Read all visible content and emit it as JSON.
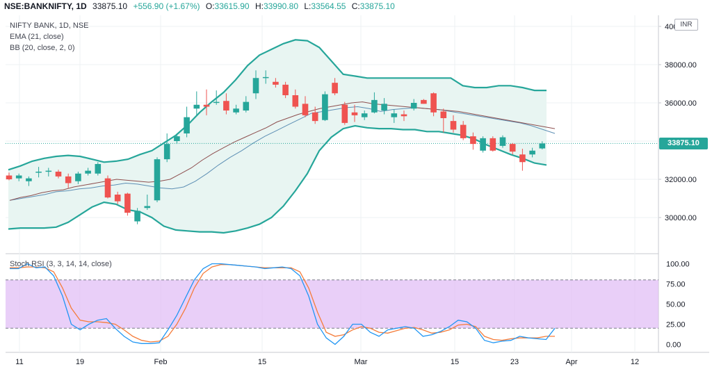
{
  "header": {
    "symbol": "NSE:BANKNIFTY, 1D",
    "last": "33875.10",
    "change": "+556.90 (+1.67%)",
    "open_lbl": "O:",
    "open": "33615.90",
    "high_lbl": "H:",
    "high": "33990.80",
    "low_lbl": "L:",
    "low": "33564.55",
    "close_lbl": "C:",
    "close": "33875.10"
  },
  "legend": {
    "title": "NIFTY BANK, 1D, NSE",
    "ema": "EMA (21, close)",
    "bb": "BB (20, close, 2, 0)",
    "stoch": "Stoch RSI (3, 3, 14, 14, close)"
  },
  "price_axis": {
    "ticks": [
      "40000.00",
      "38000.00",
      "36000.00",
      "34000.00",
      "32000.00",
      "30000.00"
    ],
    "tick_values": [
      40000,
      38000,
      36000,
      34000,
      32000,
      30000
    ],
    "currency_badge": "INR",
    "current_label": "33875.10",
    "current_value": 33875.1
  },
  "stoch_axis": {
    "ticks": [
      "100.00",
      "75.00",
      "50.00",
      "25.00",
      "0.00"
    ],
    "tick_values": [
      100,
      75,
      50,
      25,
      0
    ],
    "band": [
      20,
      80
    ]
  },
  "date_axis": {
    "labels": [
      "11",
      "19",
      "Feb",
      "15",
      "Mar",
      "15",
      "23",
      "Apr",
      "12"
    ]
  },
  "colors": {
    "up": "#26a69a",
    "down": "#ef5350",
    "bb_band": "#26a69a",
    "bb_fill": "#e8f5f2",
    "ema": "#8d4e4e",
    "bb_basis": "#5d8fb4",
    "stoch_k": "#2196f3",
    "stoch_d": "#f57c3a",
    "stoch_bg": "#e1bff5",
    "grid": "#eef0f3"
  },
  "chart_data": {
    "type": "candlestick",
    "title": "NIFTY BANK, 1D, NSE",
    "candles": [
      {
        "o": 32200,
        "h": 32350,
        "l": 31950,
        "c": 32000
      },
      {
        "o": 32050,
        "h": 32300,
        "l": 31900,
        "c": 32200
      },
      {
        "o": 31900,
        "h": 32150,
        "l": 31650,
        "c": 32050
      },
      {
        "o": 32350,
        "h": 32650,
        "l": 32100,
        "c": 32400
      },
      {
        "o": 32400,
        "h": 32600,
        "l": 32150,
        "c": 32450
      },
      {
        "o": 32400,
        "h": 32500,
        "l": 32050,
        "c": 32150
      },
      {
        "o": 32150,
        "h": 32300,
        "l": 31550,
        "c": 31800
      },
      {
        "o": 31900,
        "h": 32400,
        "l": 31750,
        "c": 32300
      },
      {
        "o": 32300,
        "h": 32600,
        "l": 32200,
        "c": 32450
      },
      {
        "o": 32300,
        "h": 32900,
        "l": 32200,
        "c": 32800
      },
      {
        "o": 32050,
        "h": 32200,
        "l": 31000,
        "c": 31050
      },
      {
        "o": 31200,
        "h": 31350,
        "l": 30700,
        "c": 30850
      },
      {
        "o": 31250,
        "h": 31300,
        "l": 30100,
        "c": 30250
      },
      {
        "o": 29800,
        "h": 30500,
        "l": 29650,
        "c": 30350
      },
      {
        "o": 30500,
        "h": 31200,
        "l": 30400,
        "c": 30600
      },
      {
        "o": 30900,
        "h": 33150,
        "l": 30800,
        "c": 33050
      },
      {
        "o": 33050,
        "h": 34400,
        "l": 32900,
        "c": 33850
      },
      {
        "o": 34000,
        "h": 34400,
        "l": 33850,
        "c": 34250
      },
      {
        "o": 34400,
        "h": 35800,
        "l": 34200,
        "c": 35250
      },
      {
        "o": 35700,
        "h": 36600,
        "l": 35300,
        "c": 35900
      },
      {
        "o": 35900,
        "h": 36700,
        "l": 35350,
        "c": 35800
      },
      {
        "o": 36050,
        "h": 36650,
        "l": 35900,
        "c": 36050
      },
      {
        "o": 36100,
        "h": 36500,
        "l": 35400,
        "c": 35600
      },
      {
        "o": 35500,
        "h": 35900,
        "l": 35400,
        "c": 35700
      },
      {
        "o": 35600,
        "h": 36350,
        "l": 35500,
        "c": 36050
      },
      {
        "o": 36500,
        "h": 37700,
        "l": 36200,
        "c": 37300
      },
      {
        "o": 37300,
        "h": 37700,
        "l": 37000,
        "c": 37350
      },
      {
        "o": 37100,
        "h": 37300,
        "l": 36800,
        "c": 36950
      },
      {
        "o": 36950,
        "h": 37100,
        "l": 36250,
        "c": 36400
      },
      {
        "o": 36400,
        "h": 36700,
        "l": 35700,
        "c": 35800
      },
      {
        "o": 35950,
        "h": 36350,
        "l": 35250,
        "c": 35350
      },
      {
        "o": 35500,
        "h": 35800,
        "l": 34900,
        "c": 35050
      },
      {
        "o": 35100,
        "h": 36600,
        "l": 35050,
        "c": 36450
      },
      {
        "o": 37050,
        "h": 37300,
        "l": 36400,
        "c": 36500
      },
      {
        "o": 35900,
        "h": 36050,
        "l": 34850,
        "c": 34950
      },
      {
        "o": 35500,
        "h": 35900,
        "l": 35000,
        "c": 35350
      },
      {
        "o": 35250,
        "h": 35600,
        "l": 35100,
        "c": 35450
      },
      {
        "o": 35500,
        "h": 36550,
        "l": 35450,
        "c": 36150
      },
      {
        "o": 35600,
        "h": 36250,
        "l": 35400,
        "c": 35950
      },
      {
        "o": 35250,
        "h": 35650,
        "l": 34950,
        "c": 35450
      },
      {
        "o": 35400,
        "h": 35600,
        "l": 35050,
        "c": 35300
      },
      {
        "o": 35700,
        "h": 36200,
        "l": 35600,
        "c": 36000
      },
      {
        "o": 36150,
        "h": 36200,
        "l": 35950,
        "c": 35950
      },
      {
        "o": 36500,
        "h": 36550,
        "l": 35300,
        "c": 35500
      },
      {
        "o": 35550,
        "h": 35700,
        "l": 34450,
        "c": 35200
      },
      {
        "o": 35050,
        "h": 35350,
        "l": 34450,
        "c": 34600
      },
      {
        "o": 34850,
        "h": 35050,
        "l": 34050,
        "c": 34150
      },
      {
        "o": 34250,
        "h": 34450,
        "l": 33550,
        "c": 33850
      },
      {
        "o": 33500,
        "h": 34250,
        "l": 33400,
        "c": 34150
      },
      {
        "o": 34150,
        "h": 34250,
        "l": 33450,
        "c": 33500
      },
      {
        "o": 33750,
        "h": 34300,
        "l": 33650,
        "c": 34200
      },
      {
        "o": 33850,
        "h": 33900,
        "l": 33300,
        "c": 33450
      },
      {
        "o": 33300,
        "h": 33600,
        "l": 32450,
        "c": 32900
      },
      {
        "o": 33300,
        "h": 33650,
        "l": 33150,
        "c": 33500
      },
      {
        "o": 33615.9,
        "h": 33990.8,
        "l": 33564.55,
        "c": 33875.1
      }
    ],
    "ema": [
      30900,
      31050,
      31150,
      31300,
      31400,
      31450,
      31600,
      31700,
      31800,
      31900,
      32000,
      31950,
      31900,
      31850,
      31900,
      32000,
      32300,
      32600,
      33000,
      33350,
      33650,
      33950,
      34200,
      34450,
      34700,
      35000,
      35200,
      35400,
      35550,
      35700,
      35800,
      35900,
      36000,
      36050,
      35950,
      35900,
      35850,
      35800,
      35750,
      35700,
      35650,
      35600,
      35550,
      35450,
      35350,
      35250,
      35150,
      35050,
      34950,
      34850,
      34750,
      34650
    ],
    "bb_basis": [
      30900,
      31000,
      31100,
      31200,
      31350,
      31400,
      31500,
      31550,
      31650,
      31700,
      31800,
      31750,
      31650,
      31550,
      31500,
      31600,
      31900,
      32300,
      32750,
      33150,
      33500,
      33900,
      34250,
      34550,
      34850,
      35150,
      35450,
      35550,
      35650,
      35750,
      35800,
      35700,
      35550,
      35650,
      35700,
      35750,
      35700,
      35650,
      35550,
      35450,
      35350,
      35250,
      35150,
      35050,
      34950,
      34800,
      34600,
      34400
    ],
    "bb_upper": [
      32500,
      32700,
      32950,
      33100,
      33200,
      33250,
      33200,
      33050,
      32900,
      32950,
      33050,
      33300,
      33500,
      33900,
      34300,
      34850,
      35500,
      36050,
      36550,
      37200,
      37950,
      38500,
      38800,
      39100,
      39300,
      39250,
      38900,
      38200,
      37500,
      37400,
      37300,
      37300,
      37300,
      37300,
      37300,
      37300,
      37300,
      37300,
      36900,
      36800,
      36800,
      36900,
      36900,
      36800,
      36650,
      36650
    ],
    "bb_lower": [
      29400,
      29450,
      29450,
      29450,
      29500,
      29750,
      30150,
      30550,
      30800,
      30700,
      30400,
      30300,
      30000,
      29550,
      29350,
      29300,
      29250,
      29250,
      29200,
      29300,
      29450,
      29650,
      30000,
      30600,
      31400,
      32300,
      33500,
      34200,
      34650,
      34800,
      34700,
      34650,
      34650,
      34600,
      34600,
      34500,
      34500,
      34400,
      34300,
      34100,
      33800,
      33550,
      33300,
      33100,
      32850,
      32750
    ],
    "stoch_k": [
      94,
      94,
      100,
      95,
      96,
      85,
      60,
      25,
      18,
      25,
      30,
      32,
      20,
      10,
      3,
      1,
      1,
      2,
      18,
      36,
      58,
      80,
      94,
      100,
      100,
      99,
      98,
      97,
      96,
      94,
      95,
      96,
      94,
      85,
      60,
      25,
      8,
      0,
      10,
      25,
      25,
      15,
      10,
      18,
      20,
      22,
      20,
      10,
      12,
      16,
      22,
      30,
      28,
      20,
      5,
      2,
      4,
      5,
      10,
      8,
      7,
      6,
      20
    ],
    "stoch_d": [
      95,
      95,
      96,
      96,
      95,
      90,
      70,
      45,
      30,
      28,
      28,
      27,
      25,
      18,
      10,
      5,
      3,
      4,
      10,
      25,
      45,
      70,
      88,
      96,
      99,
      99,
      98,
      97,
      96,
      95,
      95,
      95,
      95,
      90,
      70,
      40,
      15,
      10,
      12,
      18,
      22,
      20,
      15,
      14,
      17,
      20,
      21,
      18,
      14,
      15,
      18,
      24,
      25,
      22,
      10,
      6,
      5,
      7,
      8,
      8,
      8,
      10,
      10
    ]
  }
}
